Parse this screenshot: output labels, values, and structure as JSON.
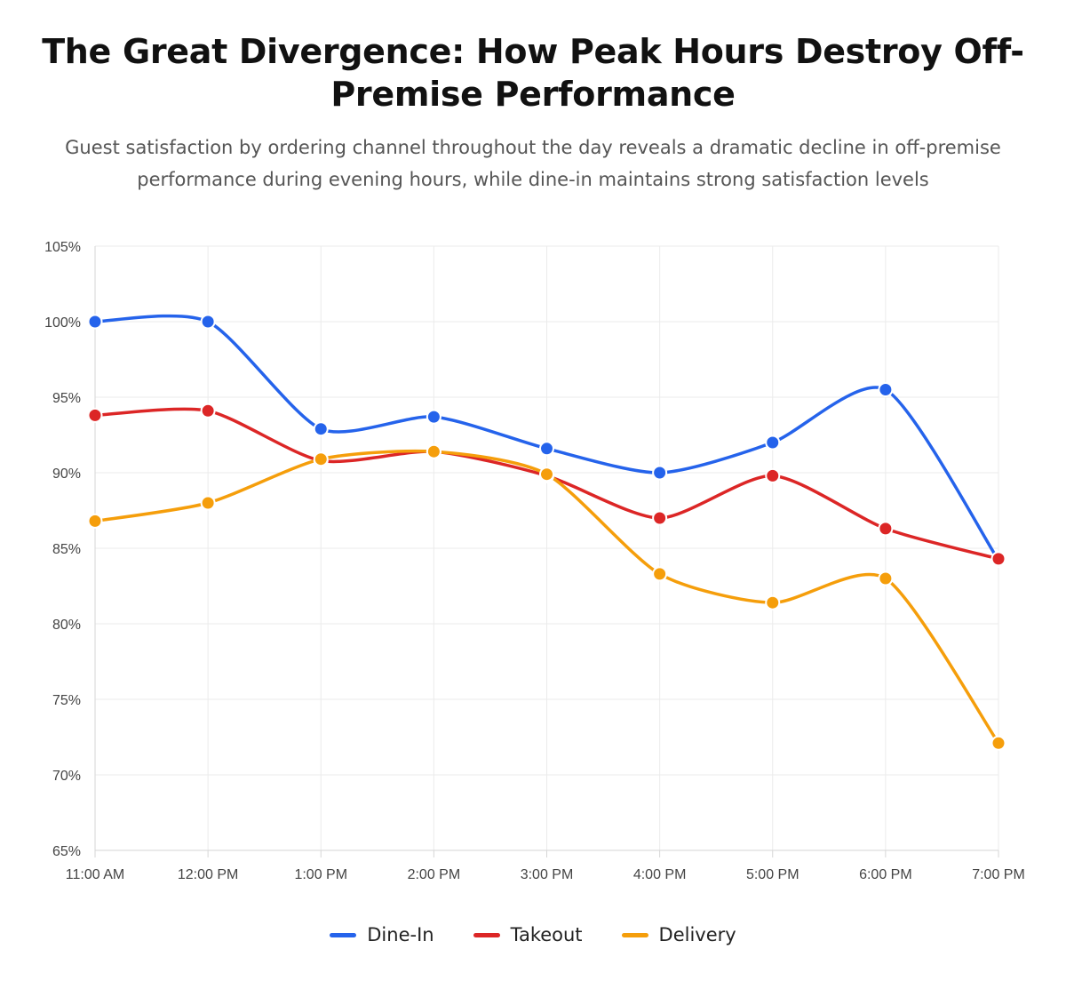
{
  "chart_data": {
    "type": "line",
    "title": "The Great Divergence: How Peak Hours Destroy Off-Premise Performance",
    "subtitle": "Guest satisfaction by ordering channel throughout the day reveals a dramatic decline in off-premise performance during evening hours, while dine-in maintains strong satisfaction levels",
    "categories": [
      "11:00 AM",
      "12:00 PM",
      "1:00 PM",
      "2:00 PM",
      "3:00 PM",
      "4:00 PM",
      "5:00 PM",
      "6:00 PM",
      "7:00 PM"
    ],
    "ylim": [
      65,
      105
    ],
    "yticks": [
      105,
      100,
      95,
      90,
      85,
      80,
      75,
      70,
      65
    ],
    "ytick_labels": [
      "105%",
      "100%",
      "95%",
      "90%",
      "85%",
      "80%",
      "75%",
      "70%",
      "65%"
    ],
    "xlabel": "",
    "ylabel": "",
    "grid": true,
    "legend_position": "bottom",
    "series": [
      {
        "name": "Dine-In",
        "color": "#2563eb",
        "values": [
          100,
          100,
          92.9,
          93.7,
          91.6,
          90,
          92,
          95.5,
          84.2
        ]
      },
      {
        "name": "Takeout",
        "color": "#dc2626",
        "values": [
          93.8,
          94.1,
          90.8,
          91.4,
          89.8,
          87,
          89.8,
          86.3,
          84.3
        ]
      },
      {
        "name": "Delivery",
        "color": "#f59e0b",
        "values": [
          86.8,
          88,
          90.9,
          91.4,
          89.9,
          83.3,
          81.4,
          83,
          72.1
        ]
      }
    ]
  }
}
